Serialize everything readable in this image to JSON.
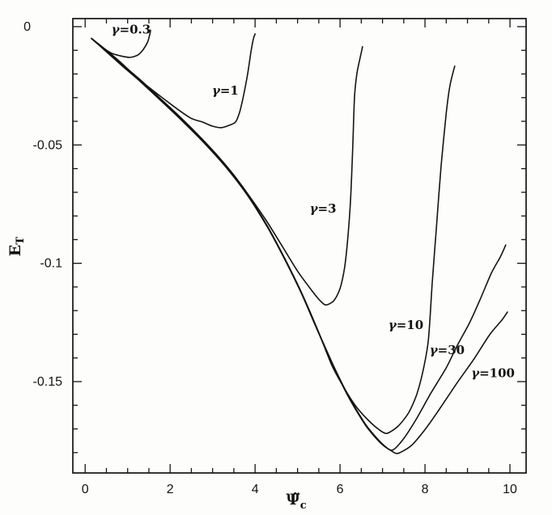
{
  "figure": {
    "background": "#fdfdfc",
    "line_color": "#141414"
  },
  "chart_data": {
    "type": "line",
    "title": "",
    "xlabel": {
      "main": "Ψ̃",
      "sub": "c"
    },
    "ylabel": {
      "main": "E",
      "sub": "T"
    },
    "xlim": [
      -0.29,
      10.38
    ],
    "ylim": [
      -0.1886,
      0.0034
    ],
    "grid": false,
    "legend": "inline-labels",
    "x_ticks": {
      "major": [
        0,
        2,
        4,
        6,
        8,
        10
      ],
      "labels": [
        "0",
        "2",
        "4",
        "6",
        "8",
        "10"
      ],
      "minor_step": 0.5
    },
    "y_ticks": {
      "major": [
        0,
        -0.05,
        -0.1,
        -0.15
      ],
      "labels": [
        "0",
        "-0.05",
        "-0.1",
        "-0.15"
      ],
      "minor_step": 0.01
    },
    "series": [
      {
        "name": "gamma-0.3",
        "label": "γ=0.3",
        "label_at": [
          1.08,
          -0.0029
        ],
        "points": [
          [
            0.15,
            -0.005
          ],
          [
            0.29,
            -0.0072
          ],
          [
            0.44,
            -0.0092
          ],
          [
            0.63,
            -0.0113
          ],
          [
            0.82,
            -0.0123
          ],
          [
            1.05,
            -0.013
          ],
          [
            1.24,
            -0.012
          ],
          [
            1.37,
            -0.0096
          ],
          [
            1.47,
            -0.0065
          ],
          [
            1.52,
            -0.0034
          ],
          [
            1.54,
            -0.0015
          ]
        ]
      },
      {
        "name": "gamma-1",
        "label": "γ=1",
        "label_at": [
          3.3,
          -0.0287
        ],
        "points": [
          [
            0.15,
            -0.005
          ],
          [
            0.48,
            -0.0097
          ],
          [
            0.86,
            -0.0155
          ],
          [
            1.24,
            -0.0219
          ],
          [
            1.62,
            -0.0273
          ],
          [
            2.04,
            -0.0331
          ],
          [
            2.48,
            -0.0386
          ],
          [
            2.76,
            -0.0403
          ],
          [
            2.99,
            -0.042
          ],
          [
            3.2,
            -0.0427
          ],
          [
            3.39,
            -0.0417
          ],
          [
            3.54,
            -0.0403
          ],
          [
            3.64,
            -0.0359
          ],
          [
            3.73,
            -0.029
          ],
          [
            3.83,
            -0.0195
          ],
          [
            3.9,
            -0.0109
          ],
          [
            3.96,
            -0.0051
          ],
          [
            4.0,
            -0.0031
          ]
        ]
      },
      {
        "name": "gamma-3",
        "label": "γ=3",
        "label_at": [
          5.6,
          -0.0786
        ],
        "points": [
          [
            0.15,
            -0.005
          ],
          [
            0.48,
            -0.0099
          ],
          [
            0.86,
            -0.0158
          ],
          [
            1.28,
            -0.0222
          ],
          [
            1.73,
            -0.0297
          ],
          [
            2.23,
            -0.0381
          ],
          [
            2.76,
            -0.0476
          ],
          [
            3.14,
            -0.055
          ],
          [
            3.52,
            -0.0632
          ],
          [
            3.9,
            -0.0725
          ],
          [
            4.29,
            -0.0827
          ],
          [
            4.67,
            -0.0937
          ],
          [
            5.01,
            -0.1036
          ],
          [
            5.3,
            -0.1107
          ],
          [
            5.5,
            -0.1152
          ],
          [
            5.66,
            -0.1176
          ],
          [
            5.85,
            -0.1159
          ],
          [
            6.0,
            -0.1107
          ],
          [
            6.11,
            -0.1015
          ],
          [
            6.19,
            -0.0878
          ],
          [
            6.25,
            -0.0725
          ],
          [
            6.3,
            -0.0502
          ],
          [
            6.34,
            -0.0297
          ],
          [
            6.4,
            -0.0195
          ],
          [
            6.48,
            -0.0126
          ],
          [
            6.53,
            -0.0085
          ]
        ]
      },
      {
        "name": "gamma-10",
        "label": "γ=10",
        "label_at": [
          7.55,
          -0.1278
        ],
        "points": [
          [
            0.15,
            -0.005
          ],
          [
            0.48,
            -0.01
          ],
          [
            0.86,
            -0.016
          ],
          [
            1.28,
            -0.0225
          ],
          [
            1.73,
            -0.03
          ],
          [
            2.23,
            -0.0385
          ],
          [
            2.76,
            -0.048
          ],
          [
            3.3,
            -0.0587
          ],
          [
            3.81,
            -0.0706
          ],
          [
            4.29,
            -0.0843
          ],
          [
            4.7,
            -0.098
          ],
          [
            5.09,
            -0.1123
          ],
          [
            5.47,
            -0.128
          ],
          [
            5.81,
            -0.1432
          ],
          [
            6.1,
            -0.1528
          ],
          [
            6.38,
            -0.1606
          ],
          [
            6.67,
            -0.1664
          ],
          [
            6.91,
            -0.1702
          ],
          [
            7.1,
            -0.1719
          ],
          [
            7.37,
            -0.1688
          ],
          [
            7.62,
            -0.163
          ],
          [
            7.81,
            -0.1552
          ],
          [
            7.96,
            -0.1449
          ],
          [
            8.08,
            -0.1323
          ],
          [
            8.17,
            -0.1083
          ],
          [
            8.27,
            -0.0844
          ],
          [
            8.38,
            -0.0588
          ],
          [
            8.5,
            -0.0366
          ],
          [
            8.59,
            -0.0246
          ],
          [
            8.7,
            -0.0167
          ]
        ]
      },
      {
        "name": "gamma-30",
        "label": "γ=30",
        "label_at": [
          8.52,
          -0.1383
        ],
        "points": [
          [
            0.15,
            -0.005
          ],
          [
            0.48,
            -0.0101
          ],
          [
            0.86,
            -0.0162
          ],
          [
            1.28,
            -0.0227
          ],
          [
            1.73,
            -0.0302
          ],
          [
            2.23,
            -0.0387
          ],
          [
            2.76,
            -0.0482
          ],
          [
            3.3,
            -0.0589
          ],
          [
            3.81,
            -0.0708
          ],
          [
            4.29,
            -0.0845
          ],
          [
            4.7,
            -0.0982
          ],
          [
            5.09,
            -0.1125
          ],
          [
            5.47,
            -0.1282
          ],
          [
            5.85,
            -0.1434
          ],
          [
            6.23,
            -0.1571
          ],
          [
            6.61,
            -0.1683
          ],
          [
            6.95,
            -0.1755
          ],
          [
            7.22,
            -0.179
          ],
          [
            7.49,
            -0.1743
          ],
          [
            7.81,
            -0.1654
          ],
          [
            8.15,
            -0.1545
          ],
          [
            8.5,
            -0.1442
          ],
          [
            8.76,
            -0.1347
          ],
          [
            9.05,
            -0.1251
          ],
          [
            9.3,
            -0.1152
          ],
          [
            9.56,
            -0.1042
          ],
          [
            9.77,
            -0.0974
          ],
          [
            9.9,
            -0.0923
          ]
        ]
      },
      {
        "name": "gamma-100",
        "label": "γ=100",
        "label_at": [
          9.6,
          -0.1482
        ],
        "points": [
          [
            0.15,
            -0.005
          ],
          [
            0.48,
            -0.0103
          ],
          [
            0.86,
            -0.0164
          ],
          [
            1.28,
            -0.0229
          ],
          [
            1.73,
            -0.0304
          ],
          [
            2.23,
            -0.0389
          ],
          [
            2.76,
            -0.0484
          ],
          [
            3.3,
            -0.0591
          ],
          [
            3.81,
            -0.071
          ],
          [
            4.29,
            -0.0847
          ],
          [
            4.7,
            -0.0984
          ],
          [
            5.09,
            -0.1127
          ],
          [
            5.47,
            -0.1284
          ],
          [
            5.85,
            -0.1438
          ],
          [
            6.23,
            -0.1575
          ],
          [
            6.61,
            -0.1687
          ],
          [
            6.95,
            -0.1759
          ],
          [
            7.22,
            -0.1794
          ],
          [
            7.37,
            -0.1803
          ],
          [
            7.68,
            -0.177
          ],
          [
            8.02,
            -0.1698
          ],
          [
            8.38,
            -0.1606
          ],
          [
            8.76,
            -0.1504
          ],
          [
            9.14,
            -0.1408
          ],
          [
            9.52,
            -0.1302
          ],
          [
            9.81,
            -0.124
          ],
          [
            9.94,
            -0.1206
          ]
        ]
      }
    ]
  }
}
